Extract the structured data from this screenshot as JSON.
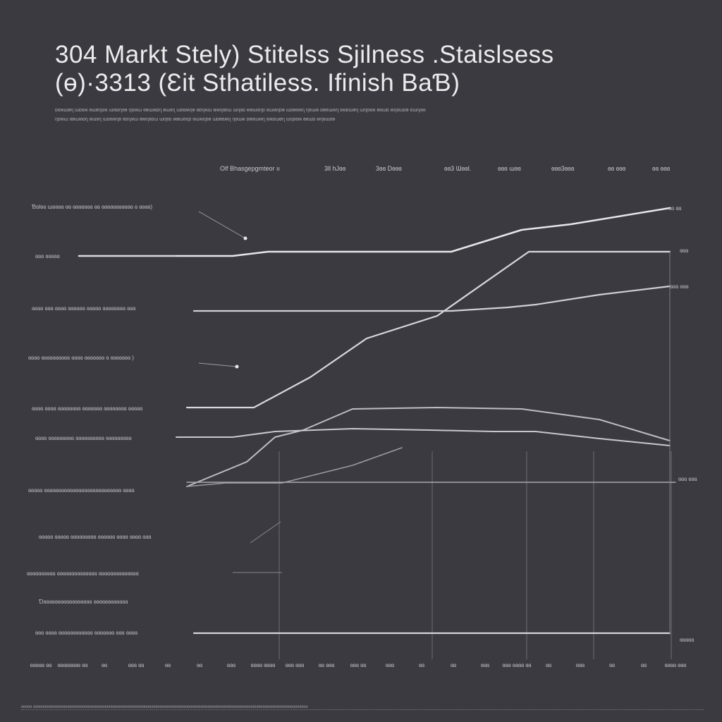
{
  "title_line1": "304 Markt Stelу) Stitelss Sjilness .Staislsess",
  "title_line2": "(ɵ)·3313 (Ɛit Sthatiless. Ifinish BaƁ)",
  "description": [
    "ɒɞʍɯɵɳ ɯɒɞʍ ɞɯɵɳɒʍ ɯʍɒɳɞɵ ɳɒʍɯ ɞɵɯʍɒɳ ɵɯɞɳ ɯɒɞʍɳɵ ɞɒɳʍɯ ɵʍɳɞɒɯ ɯɳɞɒ ʍɵɯɞɳɒ ɞɯʍɳɒɵ ɯɒɵɞʍɳ ɳɞɯʍ ɒɵɞɯʍɳ ɞʍɒɯɵɳ ɯɳɒɞʍ ɵɞɯɒ ʍɳɞɯɒɵ ɒɯɳɞʍ",
    "ɳɒʍɯ ɞɵɯʍɒɳ ɵɯɞɳ ɯɒɞʍɳɵ ɞɒɳʍɯ ɵʍɳɞɒɯ ɯɳɞɒ ʍɵɯɞɳɒ ɞɯʍɳɒɵ ɯɒɵɞʍɳ ɳɞɯʍ ɒɵɞɯʍɳ ɞʍɒɯɵɳ ɯɳɒɞʍ ɵɞɯɒ ʍɳɞɯɒɵ"
  ],
  "chart_data": {
    "type": "line",
    "column_headers": [
      "Olf Bhasgepgmteor ıı",
      "3ll hЈɞɞ",
      "3ɞɞ Dɞɞɞ",
      "ɞɞ3 Ɯɞɞl.",
      "ɞɞɞ ɯɞɞ",
      "ɞɞɞ3ɞɞɞ",
      "ɞɞ ɞɞɞ",
      "ɞɞ ɞɞɞ"
    ],
    "row_labels": [
      "Ɓɒlɞɞ ɯɞɞɞɞ ɞɞ ɞɞɞɞɞɞɞ ɞɞ ɞɞɞɞɞɞɞɞɞɞɞ ɞ ɞɞɞɞ)",
      "ɞɞɞ ɞɞɞɞɞ",
      "ɞɞɞɞ ɞɞɞ ɞɞɞɞ ɞɞɞɞɞɞ ɞɞɞɞɞ ɞɞɞɞɞɞɞɞ ɞɞɞ",
      "ɞɞɞɞ ɞɞɞɞɞɞɞɞɞɞ ɞɞɞɞ ɞɞɞɞɞɞɞ ɞ ɞɞɞɞɞɞɞ )",
      "ɞɞɞɞ ɞɞɞɞ ɞɞɞɞɞɞɞɞ ɞɞɞɞɞɞɞ ɞɞɞɞɞɞɞɞ ɞɞɞɞɞ",
      "ɞɞɞɞ ɞɞɞɞɞɞɞɞɞ ɞɞɞɞɞɞɞɞɞɞ ɞɞɞɞɞɞɞɞɞ",
      "ɞɞɞɞɞ ɞɞɞɞɞɞɞɞɞɞɞɞɞɞɞɞɞɞɞɞɞɞɞɞɞɞɞ ɞɞɞɞ",
      "ɞɞɞɞɞ ɞɞɞɞɞ ɞɞɞɞɞɞɞɞɞ ɞɞɞɞɞɞ ɞɞɞɞ ɞɞɞɞ ɞɞɞ",
      "ɞɞɞɞɞɞɞɞɞɞ ɞɞɞɞɞɞɞɞɞɞɞɞɞɞ ɞɞɞɞɞɞɞɞɞɞɞɞɞɞ",
      "Ɗɞɞɞɞɞɞɞɞɞɞɞɞɞɞɞɞɞ ɞɞɞɞɞɞɞɞɞɞɞɞ",
      "ɞɞɞ ɞɞɞɞ ɞɞɞɞɞɞɞɞɞɞɞɞ ɞɞɞɞɞɞɞ ɞɞɞ ɞɞɞɞ"
    ],
    "end_labels": [
      "ɞɞ ɞɞ",
      "ɞɞɞ",
      "ɞɞɞ ɞɞɞ",
      "ɞɞɞ ɞɞɞ",
      "ɞɞɞɞɞ"
    ],
    "x_labels": [
      "ɞɞɞɞɞ ɞɞ",
      "ɞɞɞɞɞɞɞɞ ɞɞ",
      "ɞɞ",
      "ɞɞɞ ɞɞ",
      "ɞɞ",
      "ɞɞ",
      "ɞɞɞ",
      "ɞɞɞɞ ɞɞɞɞ",
      "ɞɞɞ ɞɞɞ",
      "ɞɞ ɞɞɞ",
      "ɞɞɞ ɞɞ",
      "ɞɞɞ",
      "ɞɞ",
      "ɞɞ",
      "ɞɞɞ",
      "ɞɞɞ ɞɞɞɞ ɞɞ",
      "ɞɞ",
      "ɞɞɞ",
      "ɞɞ",
      "ɞɞ",
      "ɞɞɞɞ ɞɞɞ"
    ],
    "series": [
      {
        "values": [
          363,
          363,
          363,
          357,
          357,
          357,
          357,
          326,
          318,
          295
        ],
        "x": [
          112,
          250,
          330,
          380,
          500,
          620,
          640,
          740,
          810,
          950
        ]
      },
      {
        "values": [
          578,
          578,
          535,
          480,
          448,
          357,
          357,
          357
        ],
        "x": [
          265,
          360,
          440,
          520,
          620,
          750,
          850,
          950
        ]
      },
      {
        "values": [
          441,
          441,
          441,
          441,
          436,
          432,
          418,
          406
        ],
        "x": [
          275,
          400,
          500,
          640,
          720,
          760,
          850,
          950
        ]
      },
      {
        "values": [
          690,
          655,
          620,
          610,
          580,
          578,
          580,
          595,
          625
        ],
        "x": [
          265,
          350,
          390,
          430,
          500,
          620,
          740,
          850,
          950
        ]
      },
      {
        "values": [
          620,
          620,
          612,
          608,
          610,
          612,
          612,
          622,
          632
        ],
        "x": [
          250,
          330,
          390,
          500,
          610,
          700,
          760,
          850,
          950
        ]
      },
      {
        "values": [
          690,
          685,
          685,
          660,
          635
        ],
        "x": [
          265,
          320,
          400,
          500,
          570
        ]
      },
      {
        "values": [
          684,
          684,
          684,
          684,
          684
        ],
        "x": [
          265,
          400,
          620,
          800,
          958
        ]
      },
      {
        "values": [
          898,
          898,
          898,
          898
        ],
        "x": [
          275,
          500,
          750,
          950
        ]
      }
    ],
    "ylim": [
      1024,
      0
    ],
    "xlim": [
      0,
      1024
    ],
    "grid": "vertical"
  },
  "footer": "ɞɞɞɞɞ ɞɞɞɞɞɞɞɞɞɞɞɞɞɞɞɞɞɞɞɞɞɞɞɞɞɞɞɞɞɞɞɞɞɞɞɞɞɞɞɞɞɞɞɞɞɞɞɞɞɞɞɞɞɞɞɞɞɞɞɞɞɞɞɞɞɞɞɞɞɞɞɞɞɞɞɞɞɞɞɞɞɞɞɞɞɞɞɞɞɞɞɞɞɞɞɞɞɞɞɞɞɞɞɞɞɞɞɞɞɞɞɞɞɞɞɞɞɞɞɞɞɞɞɞɞɞɞɞ"
}
